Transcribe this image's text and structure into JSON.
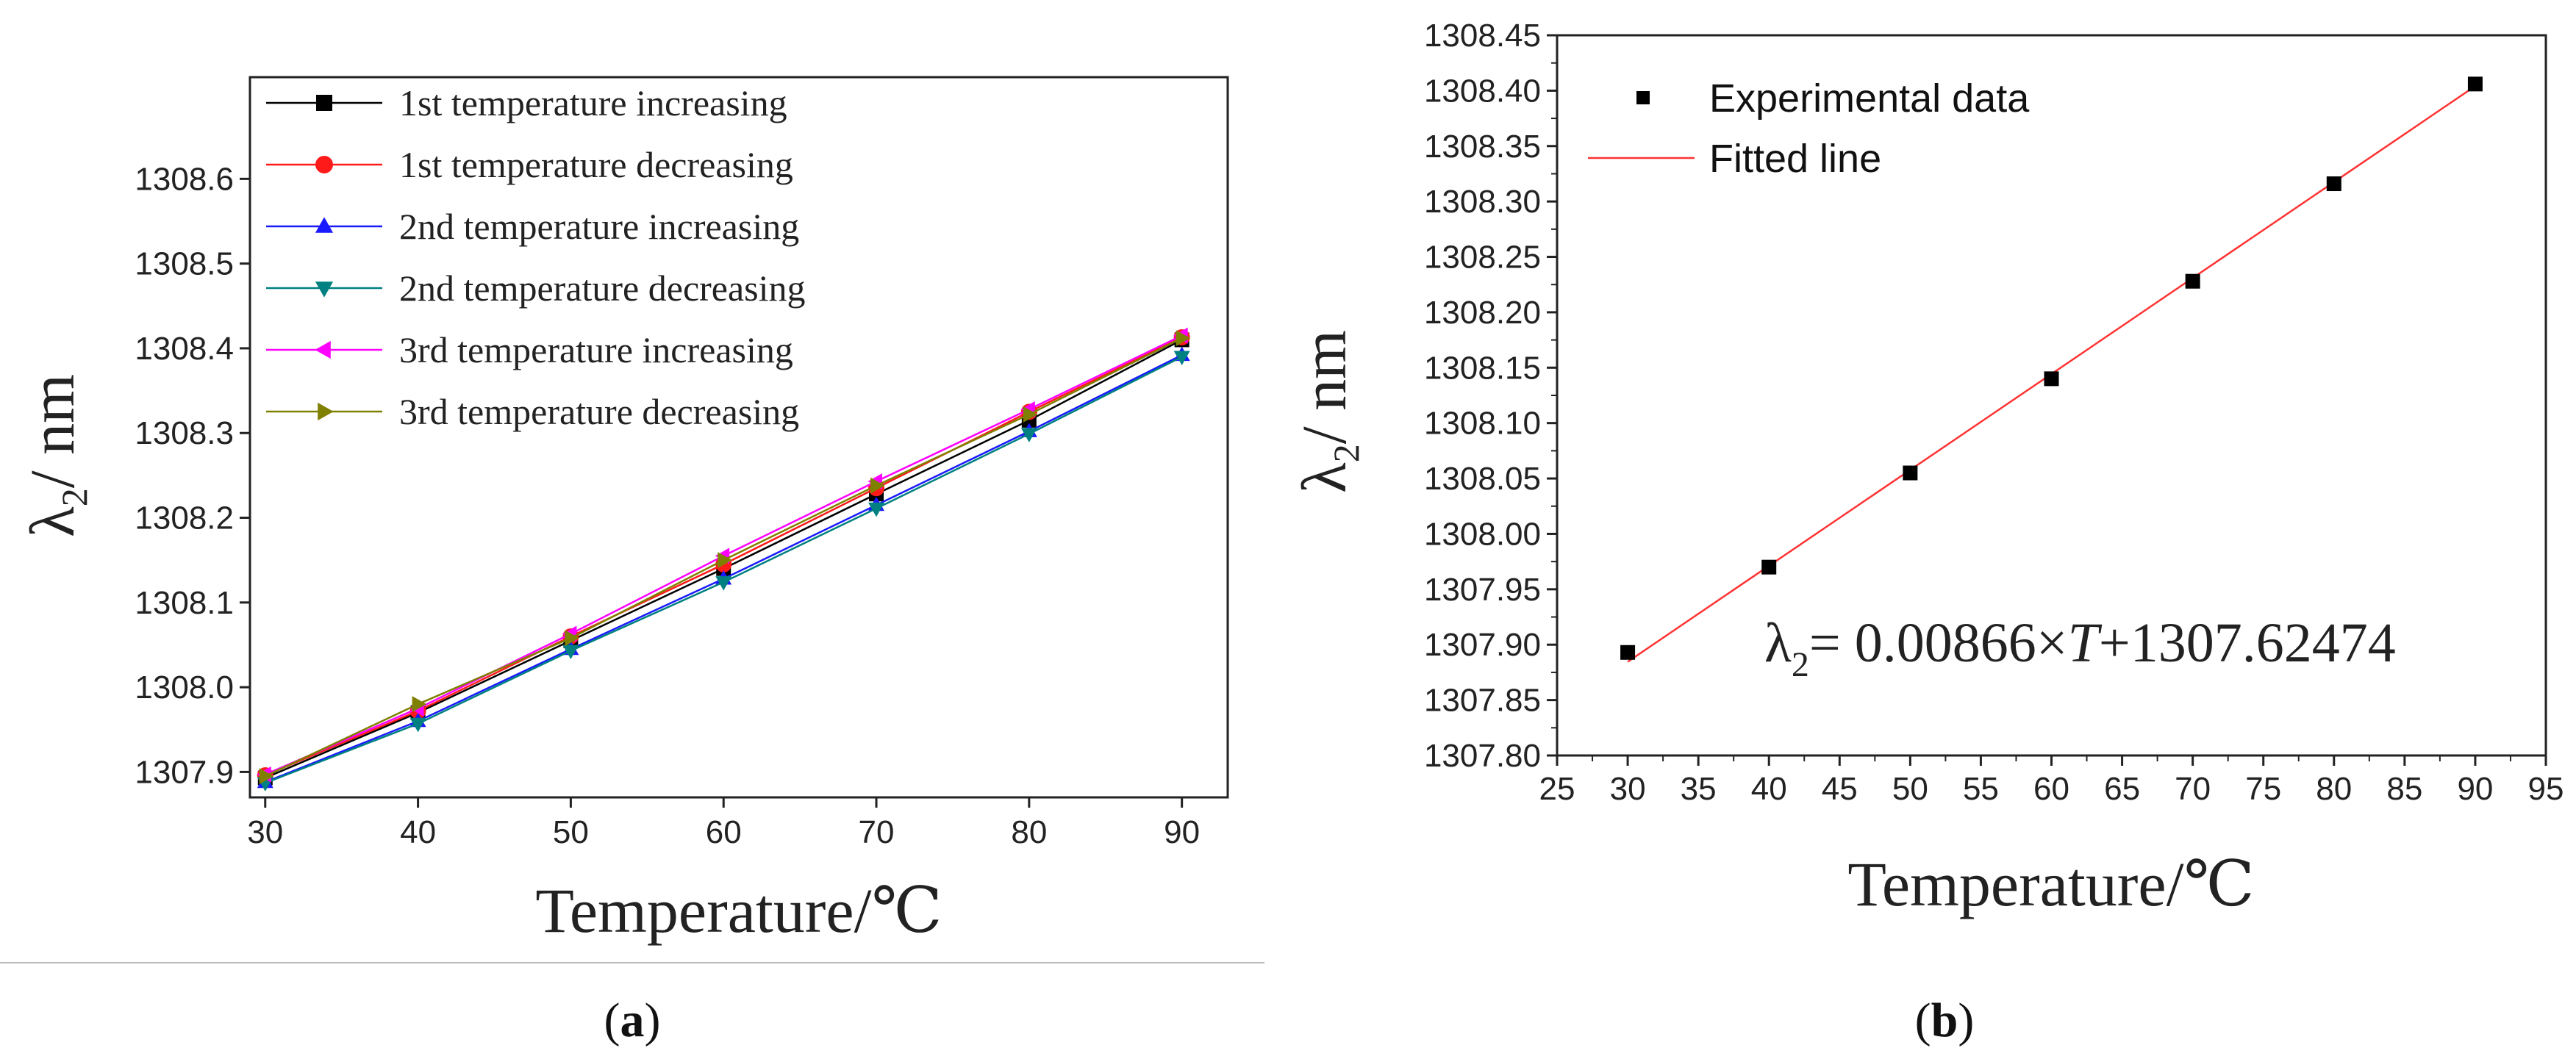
{
  "chart_data": [
    {
      "type": "line",
      "panel": "a",
      "caption_open": "(",
      "caption_letter": "a",
      "caption_close": ")",
      "xlabel": "Temperature/℃",
      "ylabel_symbol": "λ",
      "ylabel_sub": "2",
      "ylabel_unit": "/ nm",
      "x": [
        30,
        40,
        50,
        60,
        70,
        80,
        90
      ],
      "xlim": [
        29,
        93
      ],
      "ylim": [
        1307.87,
        1308.72
      ],
      "xticks": [
        "30",
        "40",
        "50",
        "60",
        "70",
        "80",
        "90"
      ],
      "yticks": [
        "1307.9",
        "1308.0",
        "1308.1",
        "1308.2",
        "1308.3",
        "1308.4",
        "1308.5",
        "1308.6"
      ],
      "ytick_values": [
        1307.9,
        1308.0,
        1308.1,
        1308.2,
        1308.3,
        1308.4,
        1308.5,
        1308.6
      ],
      "legend_position": "top-left",
      "series": [
        {
          "name": "1st temperature increasing",
          "color": "#000000",
          "marker": "square",
          "values": [
            1307.893,
            1307.97,
            1308.055,
            1308.14,
            1308.228,
            1308.315,
            1308.41
          ]
        },
        {
          "name": "1st temperature decreasing",
          "color": "#ff1a1a",
          "marker": "circle",
          "values": [
            1307.896,
            1307.972,
            1308.06,
            1308.145,
            1308.235,
            1308.325,
            1308.413
          ]
        },
        {
          "name": "2nd temperature increasing",
          "color": "#1a1aff",
          "marker": "triangle-up",
          "values": [
            1307.888,
            1307.96,
            1308.045,
            1308.128,
            1308.215,
            1308.302,
            1308.392
          ]
        },
        {
          "name": "2nd temperature decreasing",
          "color": "#008080",
          "marker": "triangle-down",
          "values": [
            1307.887,
            1307.957,
            1308.043,
            1308.124,
            1308.211,
            1308.299,
            1308.39
          ]
        },
        {
          "name": "3rd temperature increasing",
          "color": "#ff00ff",
          "marker": "triangle-left",
          "values": [
            1307.897,
            1307.975,
            1308.063,
            1308.155,
            1308.243,
            1308.328,
            1308.415
          ]
        },
        {
          "name": "3rd temperature decreasing",
          "color": "#808000",
          "marker": "triangle-right",
          "values": [
            1307.895,
            1307.98,
            1308.058,
            1308.15,
            1308.238,
            1308.322,
            1308.412
          ]
        }
      ]
    },
    {
      "type": "scatter",
      "panel": "b",
      "caption_open": "(",
      "caption_letter": "b",
      "caption_close": ")",
      "xlabel": "Temperature/℃",
      "ylabel_symbol": "λ",
      "ylabel_sub": "2",
      "ylabel_unit": "/ nm",
      "x": [
        30,
        40,
        50,
        60,
        70,
        80,
        90
      ],
      "xlim": [
        25,
        95
      ],
      "ylim": [
        1307.8,
        1308.45
      ],
      "xticks": [
        "25",
        "30",
        "35",
        "40",
        "45",
        "50",
        "55",
        "60",
        "65",
        "70",
        "75",
        "80",
        "85",
        "90",
        "95"
      ],
      "xtick_values": [
        25,
        30,
        35,
        40,
        45,
        50,
        55,
        60,
        65,
        70,
        75,
        80,
        85,
        90,
        95
      ],
      "yticks": [
        "1307.80",
        "1307.85",
        "1307.90",
        "1307.95",
        "1308.00",
        "1308.05",
        "1308.10",
        "1308.15",
        "1308.20",
        "1308.25",
        "1308.30",
        "1308.35",
        "1308.40",
        "1308.45"
      ],
      "ytick_values": [
        1307.8,
        1307.85,
        1307.9,
        1307.95,
        1308.0,
        1308.05,
        1308.1,
        1308.15,
        1308.2,
        1308.25,
        1308.3,
        1308.35,
        1308.4,
        1308.45
      ],
      "legend_position": "top-left",
      "series": [
        {
          "name": "Experimental data",
          "color": "#000000",
          "marker": "square",
          "values": [
            1307.893,
            1307.97,
            1308.055,
            1308.14,
            1308.228,
            1308.316,
            1308.406
          ]
        }
      ],
      "fit": {
        "name": "Fitted line",
        "color": "#ff3333",
        "slope": 0.00866,
        "intercept": 1307.62474,
        "x_range": [
          30,
          90
        ]
      },
      "equation": {
        "symbol": "λ",
        "sub": "2",
        "rest_a": "= 0.00866×",
        "var": "T",
        "rest_b": "+1307.62474"
      }
    }
  ]
}
